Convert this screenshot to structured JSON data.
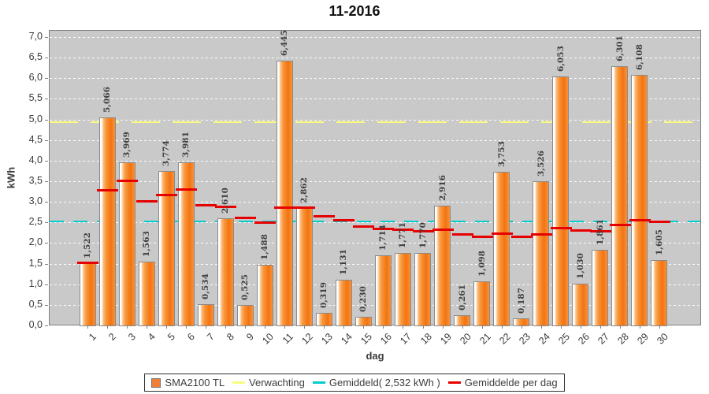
{
  "title": "11-2016",
  "colors": {
    "plot_background": "#c9c9c9",
    "bar_main": "#f3740f",
    "bar_light": "#fdc183",
    "bar_border": "#8a8a8a",
    "verwachting_line": "#fbfb7e",
    "gemiddeld_line": "#00cccc",
    "daily_average_line": "#e60000",
    "grid_line": "#ffffff",
    "axis_text": "#3c3c3c"
  },
  "y_axis": {
    "label": "kWh",
    "tick_labels": [
      "0,0",
      "0,5",
      "1,0",
      "1,5",
      "2,0",
      "2,5",
      "3,0",
      "3,5",
      "4,0",
      "4,5",
      "5,0",
      "5,5",
      "6,0",
      "6,5",
      "7,0"
    ],
    "min": 0,
    "max": 7.0,
    "step": 0.5
  },
  "x_axis": {
    "label": "dag",
    "tick_labels": [
      "1",
      "2",
      "3",
      "4",
      "5",
      "6",
      "7",
      "8",
      "9",
      "10",
      "11",
      "12",
      "13",
      "14",
      "15",
      "16",
      "17",
      "18",
      "19",
      "20",
      "21",
      "22",
      "23",
      "24",
      "25",
      "26",
      "27",
      "28",
      "29",
      "30"
    ]
  },
  "legend": {
    "items": [
      {
        "label": "SMA2100 TL",
        "swatch": "square",
        "color": "#f08038"
      },
      {
        "label": "Verwachting",
        "swatch": "line",
        "color": "#fbfb7e"
      },
      {
        "label": "Gemiddeld( 2,532 kWh )",
        "swatch": "line",
        "color": "#00cccc"
      },
      {
        "label": "Gemiddelde per dag",
        "swatch": "line",
        "color": "#e60000"
      }
    ]
  },
  "chart_data": {
    "type": "bar",
    "title": "11-2016",
    "xlabel": "dag",
    "ylabel": "kWh",
    "ylim": [
      0,
      7.17
    ],
    "grid": "horizontal-dashed-white",
    "legend_position": "bottom",
    "categories": [
      1,
      2,
      3,
      4,
      5,
      6,
      7,
      8,
      9,
      10,
      11,
      12,
      13,
      14,
      15,
      16,
      17,
      18,
      19,
      20,
      21,
      22,
      23,
      24,
      25,
      26,
      27,
      28,
      29,
      30
    ],
    "series": [
      {
        "name": "SMA2100 TL",
        "values": [
          1.522,
          5.066,
          3.969,
          1.563,
          3.774,
          3.981,
          0.534,
          2.61,
          0.525,
          1.488,
          6.445,
          2.862,
          0.319,
          1.131,
          0.23,
          1.714,
          1.771,
          1.77,
          2.916,
          0.261,
          1.098,
          3.753,
          0.187,
          3.526,
          6.053,
          1.03,
          1.861,
          6.301,
          6.108,
          1.605
        ],
        "labels": [
          "1,522",
          "5,066",
          "3,969",
          "1,563",
          "3,774",
          "3,981",
          "0,534",
          "2,610",
          "0,525",
          "1,488",
          "6,445",
          "2,862",
          "0,319",
          "1,131",
          "0,230",
          "1,714",
          "1,771",
          "1,770",
          "2,916",
          "0,261",
          "1,098",
          "3,753",
          "0,187",
          "3,526",
          "6,053",
          "1,030",
          "1,861",
          "6,301",
          "6,108",
          "1,605"
        ]
      }
    ],
    "reference_lines": [
      {
        "name": "Verwachting",
        "value": 4.93,
        "style": "long-dash"
      },
      {
        "name": "Gemiddeld",
        "label": "Gemiddeld( 2,532 kWh )",
        "value": 2.532,
        "style": "dash"
      }
    ],
    "running_average": {
      "name": "Gemiddelde per dag",
      "values": [
        1.522,
        3.294,
        3.519,
        3.03,
        3.179,
        3.313,
        2.916,
        2.878,
        2.616,
        2.503,
        2.862,
        2.861,
        2.666,
        2.556,
        2.401,
        2.358,
        2.324,
        2.293,
        2.326,
        2.223,
        2.169,
        2.241,
        2.152,
        2.209,
        2.363,
        2.311,
        2.295,
        2.438,
        2.564,
        2.532
      ]
    }
  }
}
